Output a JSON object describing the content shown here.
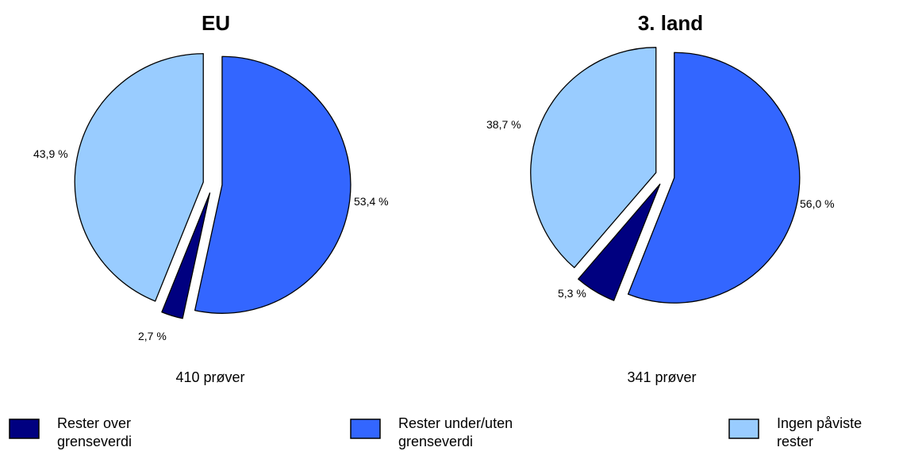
{
  "chart_data": [
    {
      "type": "pie",
      "title": "EU",
      "sample_count": "410 prøver",
      "slices": [
        {
          "category": "Rester under/uten grenseverdi",
          "value": 53.4,
          "label": "53,4 %",
          "color": "#3366FF"
        },
        {
          "category": "Rester over grenseverdi",
          "value": 2.7,
          "label": "2,7 %",
          "color": "#000080"
        },
        {
          "category": "Ingen påviste rester",
          "value": 43.9,
          "label": "43,9 %",
          "color": "#99CCFF"
        }
      ]
    },
    {
      "type": "pie",
      "title": "3. land",
      "sample_count": "341 prøver",
      "slices": [
        {
          "category": "Rester under/uten grenseverdi",
          "value": 56.0,
          "label": "56,0 %",
          "color": "#3366FF"
        },
        {
          "category": "Rester over grenseverdi",
          "value": 5.3,
          "label": "5,3 %",
          "color": "#000080"
        },
        {
          "category": "Ingen påviste rester",
          "value": 38.7,
          "label": "38,7 %",
          "color": "#99CCFF"
        }
      ]
    }
  ],
  "legend": [
    {
      "line1": "Rester over",
      "line2": "grenseverdi",
      "color": "#000080"
    },
    {
      "line1": "Rester under/uten",
      "line2": "grenseverdi",
      "color": "#3366FF"
    },
    {
      "line1": "Ingen påviste",
      "line2": "rester",
      "color": "#99CCFF"
    }
  ]
}
